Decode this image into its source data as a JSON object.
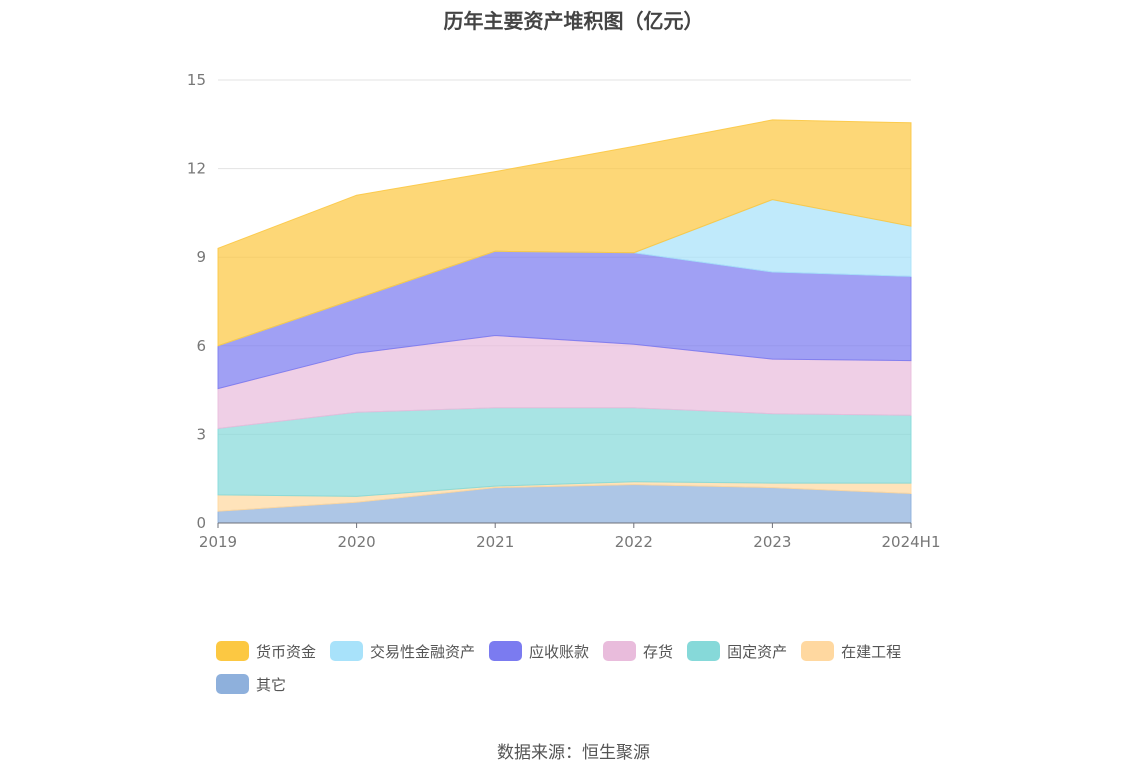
{
  "chart_data": {
    "type": "area",
    "stacked": true,
    "title": "历年主要资产堆积图（亿元）",
    "xlabel": "",
    "ylabel": "",
    "categories": [
      "2019",
      "2020",
      "2021",
      "2022",
      "2023",
      "2024H1"
    ],
    "ylim": [
      0,
      15
    ],
    "yticks": [
      "0",
      "3",
      "6",
      "9",
      "12",
      "15"
    ],
    "grid": true,
    "legend_position": "bottom",
    "series": [
      {
        "name": "其它",
        "color": "#8eb0dc",
        "values": [
          0.4,
          0.7,
          1.2,
          1.3,
          1.2,
          1.0
        ]
      },
      {
        "name": "在建工程",
        "color": "#ffd8a0",
        "values": [
          0.55,
          0.2,
          0.05,
          0.1,
          0.15,
          0.35
        ]
      },
      {
        "name": "固定资产",
        "color": "#86d9d9",
        "values": [
          2.25,
          2.85,
          2.65,
          2.5,
          2.35,
          2.3
        ]
      },
      {
        "name": "存货",
        "color": "#e9bcdc",
        "values": [
          1.35,
          2.0,
          2.45,
          2.15,
          1.85,
          1.85
        ]
      },
      {
        "name": "应收账款",
        "color": "#7b7bf0",
        "values": [
          1.45,
          1.85,
          2.85,
          3.1,
          2.95,
          2.85
        ]
      },
      {
        "name": "交易性金融资产",
        "color": "#a8e2fa",
        "values": [
          0,
          0,
          0,
          0,
          2.45,
          1.7
        ]
      },
      {
        "name": "货币资金",
        "color": "#fcc842",
        "values": [
          3.3,
          3.5,
          2.7,
          3.6,
          2.7,
          3.5
        ]
      }
    ],
    "legend_order": [
      "货币资金",
      "交易性金融资产",
      "应收账款",
      "存货",
      "固定资产",
      "在建工程",
      "其它"
    ]
  },
  "source": "数据来源：恒生聚源"
}
